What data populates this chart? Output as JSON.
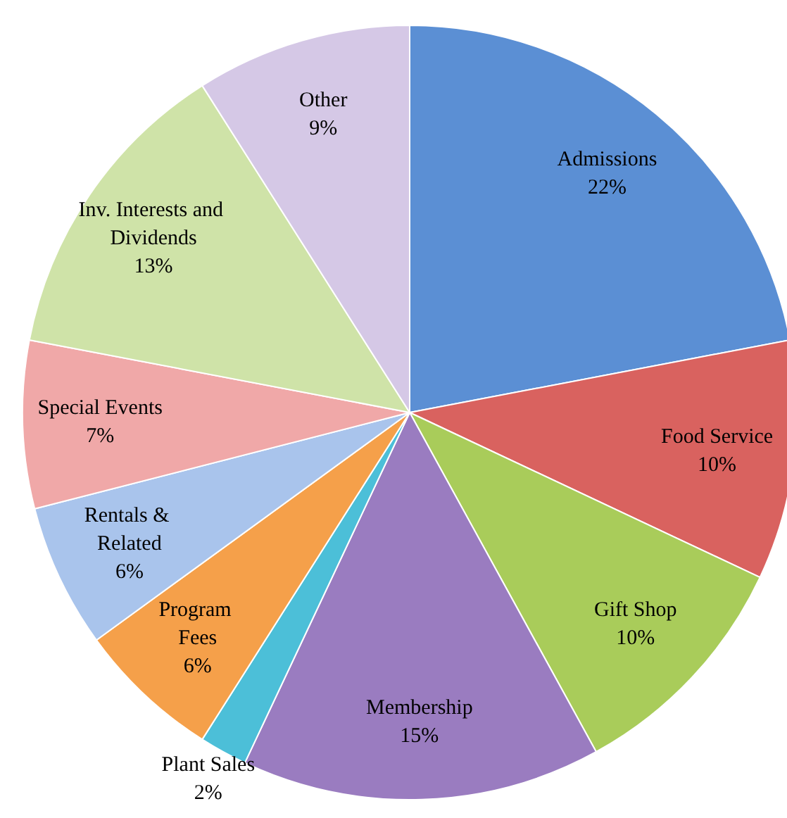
{
  "chart_data": {
    "type": "pie",
    "categories": [
      "Admissions",
      "Food Service",
      "Gift Shop",
      "Membership",
      "Plant Sales",
      "Program Fees",
      "Rentals & Related",
      "Special Events",
      "Inv. Interests and Dividends",
      "Other"
    ],
    "values": [
      22,
      10,
      10,
      15,
      2,
      6,
      6,
      7,
      13,
      9
    ],
    "value_labels": [
      "22%",
      "10%",
      "10%",
      "15%",
      "2%",
      "6%",
      "6%",
      "7%",
      "13%",
      "9%"
    ],
    "colors": [
      "#5b8fd4",
      "#d9625f",
      "#a9cc5a",
      "#9a7cc0",
      "#4cbfd8",
      "#f5a04a",
      "#a9c4ec",
      "#f0a8a8",
      "#cfe3a8",
      "#d5c8e6"
    ],
    "legend": false
  }
}
